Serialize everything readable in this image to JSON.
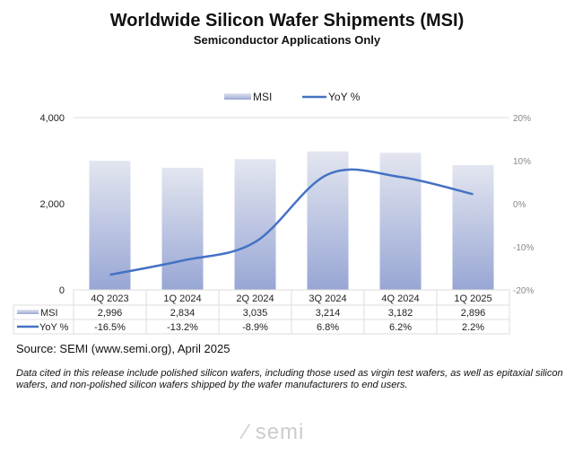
{
  "chart_data": {
    "type": "bar+line",
    "title": "Worldwide Silicon Wafer Shipments (MSI)",
    "subtitle": "Semiconductor Applications Only",
    "categories": [
      "4Q 2023",
      "1Q 2024",
      "2Q 2024",
      "3Q 2024",
      "4Q 2024",
      "1Q 2025"
    ],
    "series": [
      {
        "name": "MSI",
        "type": "bar",
        "axis": "left",
        "values": [
          2996,
          2834,
          3035,
          3214,
          3182,
          2896
        ],
        "labels": [
          "2,996",
          "2,834",
          "3,035",
          "3,214",
          "3,182",
          "2,896"
        ],
        "color": "#a9b4d8"
      },
      {
        "name": "YoY %",
        "type": "line",
        "axis": "right",
        "values": [
          -16.5,
          -13.2,
          -8.9,
          6.8,
          6.2,
          2.2
        ],
        "labels": [
          "-16.5%",
          "-13.2%",
          "-8.9%",
          "6.8%",
          "6.2%",
          "2.2%"
        ],
        "color": "#4472c4"
      }
    ],
    "left_axis": {
      "ylim": [
        0,
        4000
      ],
      "ticks": [
        "0",
        "2,000",
        "4,000"
      ]
    },
    "right_axis": {
      "ylim": [
        -20,
        20
      ],
      "ticks": [
        "-20%",
        "-10%",
        "0%",
        "10%",
        "20%"
      ]
    },
    "legend": "top",
    "grid": false,
    "data_table": true
  },
  "source": "Source: SEMI (www.semi.org), April 2025",
  "note": "Data cited in this release include polished silicon wafers, including those used as virgin test wafers, as well as epitaxial silicon wafers, and non-polished silicon wafers shipped by the wafer manufacturers to end users.",
  "logo": "semi"
}
